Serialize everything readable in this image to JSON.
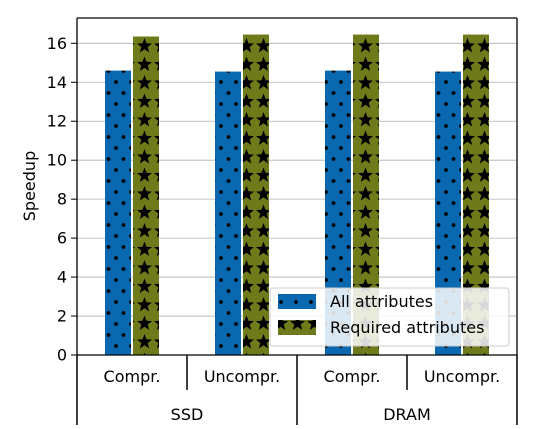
{
  "chart_data": {
    "type": "bar",
    "title": "",
    "xlabel": "",
    "ylabel": "Speedup",
    "ylim": [
      0,
      17.3
    ],
    "yticks": [
      0,
      2,
      4,
      6,
      8,
      10,
      12,
      14,
      16
    ],
    "ytick_labels": [
      "0",
      "2",
      "4",
      "6",
      "8",
      "10",
      "12",
      "14",
      "16"
    ],
    "grid": "horizontal",
    "categories": [
      "Compr.",
      "Uncompr.",
      "Compr.",
      "Uncompr."
    ],
    "groups": [
      {
        "label": "SSD",
        "categories": [
          0,
          1
        ]
      },
      {
        "label": "DRAM",
        "categories": [
          2,
          3
        ]
      }
    ],
    "series": [
      {
        "name": "All attributes",
        "values": [
          14.6,
          14.55,
          14.6,
          14.55
        ],
        "color": "#0a68b0",
        "pattern": "dots"
      },
      {
        "name": "Required attributes",
        "values": [
          16.35,
          16.45,
          16.45,
          16.45
        ],
        "color": "#6f7b1a",
        "pattern": "stars"
      }
    ],
    "legend": {
      "position": "lower-right"
    }
  }
}
